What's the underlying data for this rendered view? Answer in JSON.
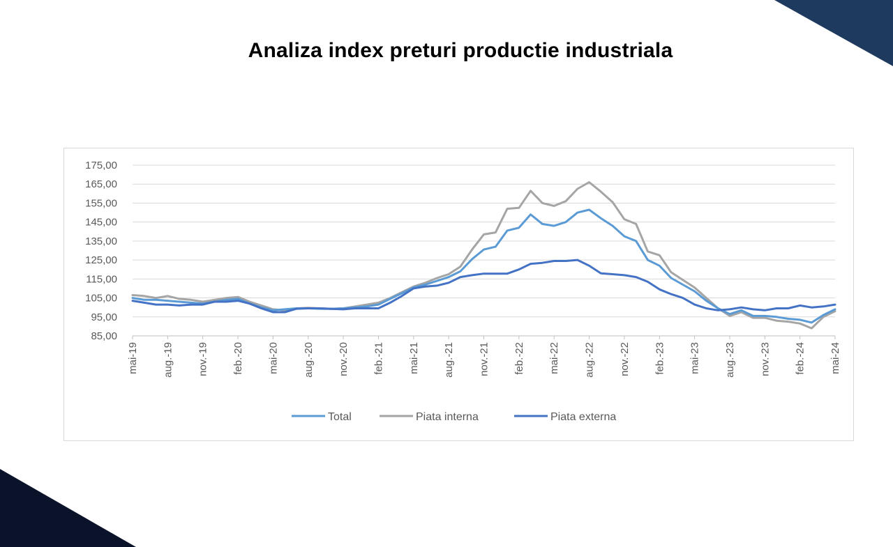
{
  "page": {
    "title": "Analiza index preturi productie industriala",
    "accent_color_top": "#1f3a5f",
    "accent_color_bottom": "#0b132b"
  },
  "chart_data": {
    "type": "line",
    "title": "",
    "xlabel": "",
    "ylabel": "",
    "ylim": [
      85,
      175
    ],
    "yticks": [
      "85,00",
      "95,00",
      "105,00",
      "115,00",
      "125,00",
      "135,00",
      "145,00",
      "155,00",
      "165,00",
      "175,00"
    ],
    "grid": true,
    "legend_position": "bottom",
    "x": [
      "mai-19",
      "iun.-19",
      "iul.-19",
      "aug.-19",
      "sept.-19",
      "oct.-19",
      "nov.-19",
      "dec.-19",
      "ian.-20",
      "feb.-20",
      "mar.-20",
      "apr.-20",
      "mai-20",
      "iun.-20",
      "iul.-20",
      "aug.-20",
      "sept.-20",
      "oct.-20",
      "nov.-20",
      "dec.-20",
      "ian.-21",
      "feb.-21",
      "mar.-21",
      "apr.-21",
      "mai-21",
      "iun.-21",
      "iul.-21",
      "aug.-21",
      "sept.-21",
      "oct.-21",
      "nov.-21",
      "dec.-21",
      "ian.-22",
      "feb.-22",
      "mar.-22",
      "apr.-22",
      "mai-22",
      "iun.-22",
      "iul.-22",
      "aug.-22",
      "sept.-22",
      "oct.-22",
      "nov.-22",
      "dec.-22",
      "ian.-23",
      "feb.-23",
      "mar.-23",
      "apr.-23",
      "mai-23",
      "iun.-23",
      "iul.-23",
      "aug.-23",
      "sept.-23",
      "oct.-23",
      "nov.-23",
      "dec.-23",
      "ian.-24",
      "feb.-24",
      "mar.-24",
      "apr.-24",
      "mai-24"
    ],
    "x_tick_labels": [
      "mai-19",
      "aug.-19",
      "nov.-19",
      "feb.-20",
      "mai-20",
      "aug.-20",
      "nov.-20",
      "feb.-21",
      "mai-21",
      "aug.-21",
      "nov.-21",
      "feb.-22",
      "mai-22",
      "aug.-22",
      "nov.-22",
      "feb.-23",
      "mai-23",
      "aug.-23",
      "nov.-23",
      "feb.-24",
      "mai-24"
    ],
    "series": [
      {
        "name": "Total",
        "color": "#5b9bd5",
        "values": [
          105,
          104,
          104,
          103.5,
          103,
          102.5,
          102,
          103,
          104,
          104.5,
          102,
          100,
          98.5,
          99,
          99.5,
          99.5,
          99.3,
          99.2,
          99.5,
          100,
          100.5,
          101.5,
          104.5,
          107.5,
          110.5,
          112,
          114,
          116,
          119,
          125.5,
          130.5,
          132,
          140.5,
          142,
          149,
          144,
          143,
          145,
          150,
          151.5,
          147,
          143,
          137.5,
          135,
          125,
          122,
          115.5,
          112,
          108.5,
          103.5,
          99.5,
          96.5,
          98.5,
          95.5,
          95.5,
          95,
          94,
          93.5,
          92,
          96,
          99
        ]
      },
      {
        "name": "Piata interna",
        "color": "#a5a5a5",
        "values": [
          106.5,
          106,
          105,
          106,
          104.5,
          104,
          103,
          104,
          105,
          105.5,
          103,
          101,
          99,
          98.5,
          99.5,
          99.8,
          99.5,
          99.3,
          99.5,
          100.5,
          101.5,
          102.5,
          105,
          108,
          111,
          113,
          115.5,
          117.5,
          121.5,
          130.5,
          138.5,
          139.5,
          152,
          152.5,
          161.5,
          155,
          153.5,
          156,
          162.5,
          166,
          161,
          155.5,
          146.5,
          144,
          129.5,
          127.5,
          118.5,
          114.5,
          110.5,
          105,
          99.5,
          95.5,
          97.5,
          94.5,
          94.5,
          93,
          92.5,
          91.5,
          89,
          95,
          98
        ]
      },
      {
        "name": "Piata externa",
        "color": "#4472c4",
        "values": [
          103.5,
          102.5,
          101.5,
          101.5,
          101,
          101.5,
          101.5,
          103,
          103,
          103.5,
          102,
          99.5,
          97.5,
          97.5,
          99.3,
          99.5,
          99.5,
          99.2,
          99,
          99.5,
          99.5,
          99.5,
          102.5,
          106,
          110,
          111,
          111.5,
          113,
          116,
          117,
          117.8,
          117.8,
          117.8,
          120,
          123,
          123.5,
          124.5,
          124.5,
          125,
          122,
          118,
          117.5,
          117,
          116,
          113.5,
          109.5,
          107,
          105,
          101.5,
          99.5,
          98.5,
          99,
          100,
          99,
          98.5,
          99.5,
          99.5,
          101,
          100,
          100.5,
          101.5
        ]
      }
    ]
  }
}
